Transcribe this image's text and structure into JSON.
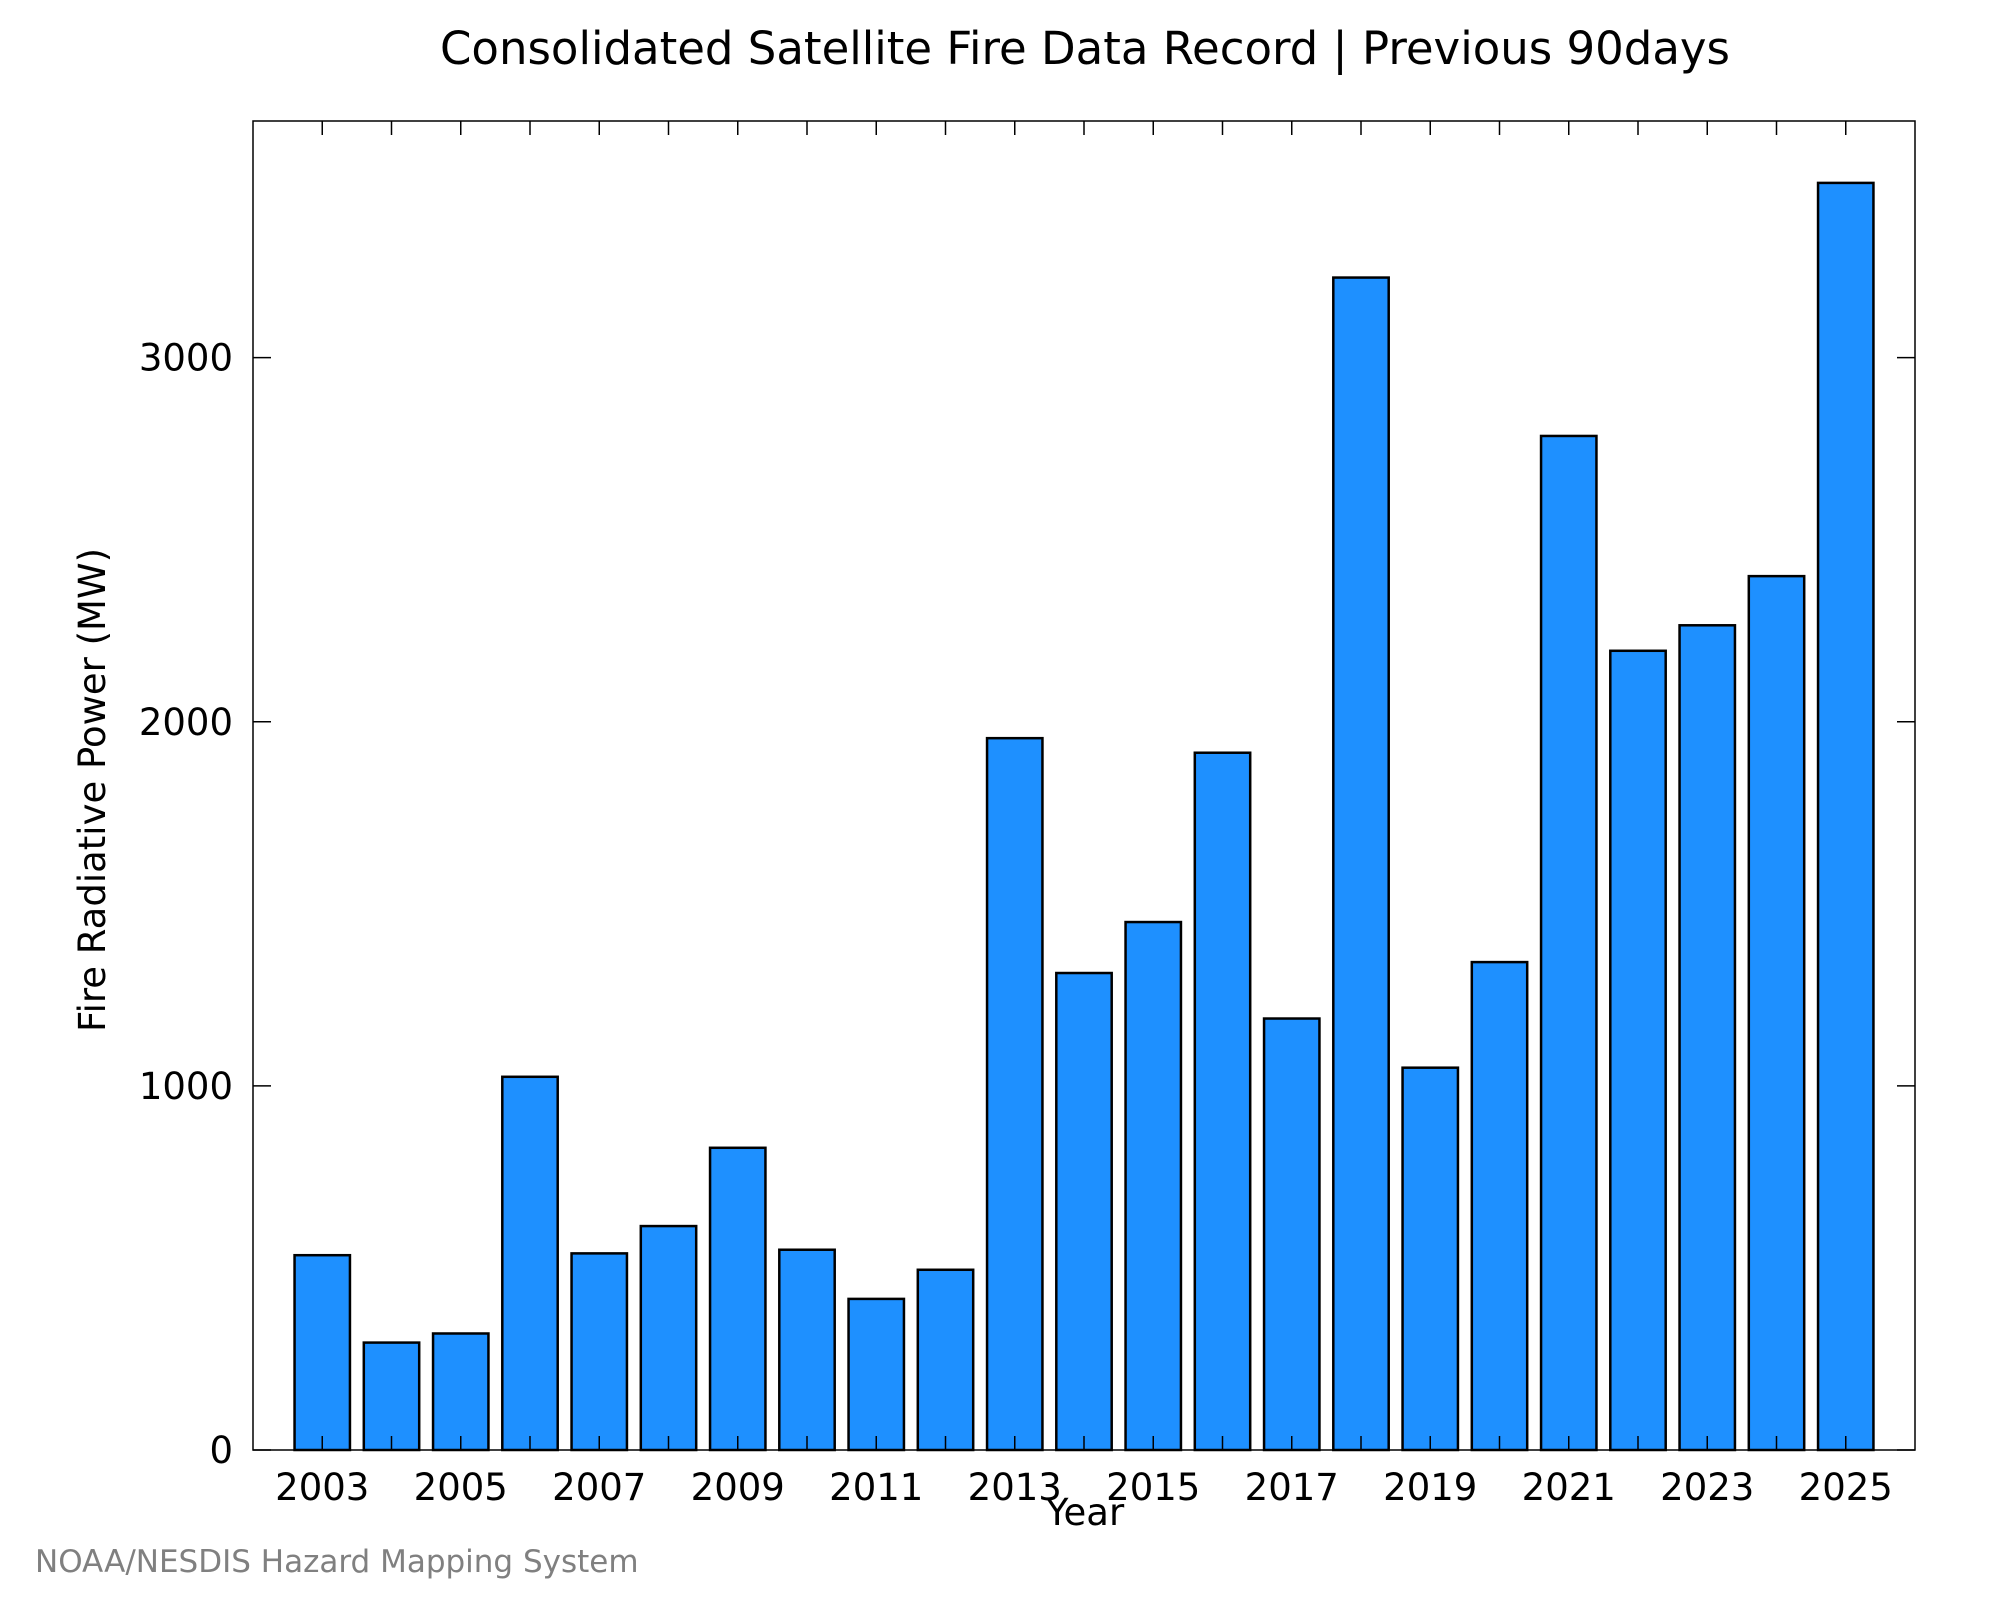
{
  "chart_data": {
    "type": "bar",
    "title": "Consolidated Satellite Fire Data Record | Previous 90days",
    "xlabel": "Year",
    "ylabel": "Fire Radiative Power (MW)",
    "categories": [
      "2003",
      "2004",
      "2005",
      "2006",
      "2007",
      "2008",
      "2009",
      "2010",
      "2011",
      "2012",
      "2013",
      "2014",
      "2015",
      "2016",
      "2017",
      "2018",
      "2019",
      "2020",
      "2021",
      "2022",
      "2023",
      "2024",
      "2025"
    ],
    "values": [
      535,
      295,
      320,
      1025,
      540,
      615,
      830,
      550,
      415,
      495,
      1955,
      1310,
      1450,
      1915,
      1185,
      3220,
      1050,
      1340,
      2785,
      2195,
      2265,
      2400,
      3480
    ],
    "x_tick_labels": [
      "2003",
      "2005",
      "2007",
      "2009",
      "2011",
      "2013",
      "2015",
      "2017",
      "2019",
      "2021",
      "2023",
      "2025"
    ],
    "y_ticks": [
      0,
      1000,
      2000,
      3000
    ],
    "ylim": [
      0,
      3650
    ],
    "bar_color": "#1e90ff",
    "bar_edge_color": "#000000",
    "grid": false,
    "legend": "none"
  },
  "credit": "NOAA/NESDIS Hazard Mapping System"
}
